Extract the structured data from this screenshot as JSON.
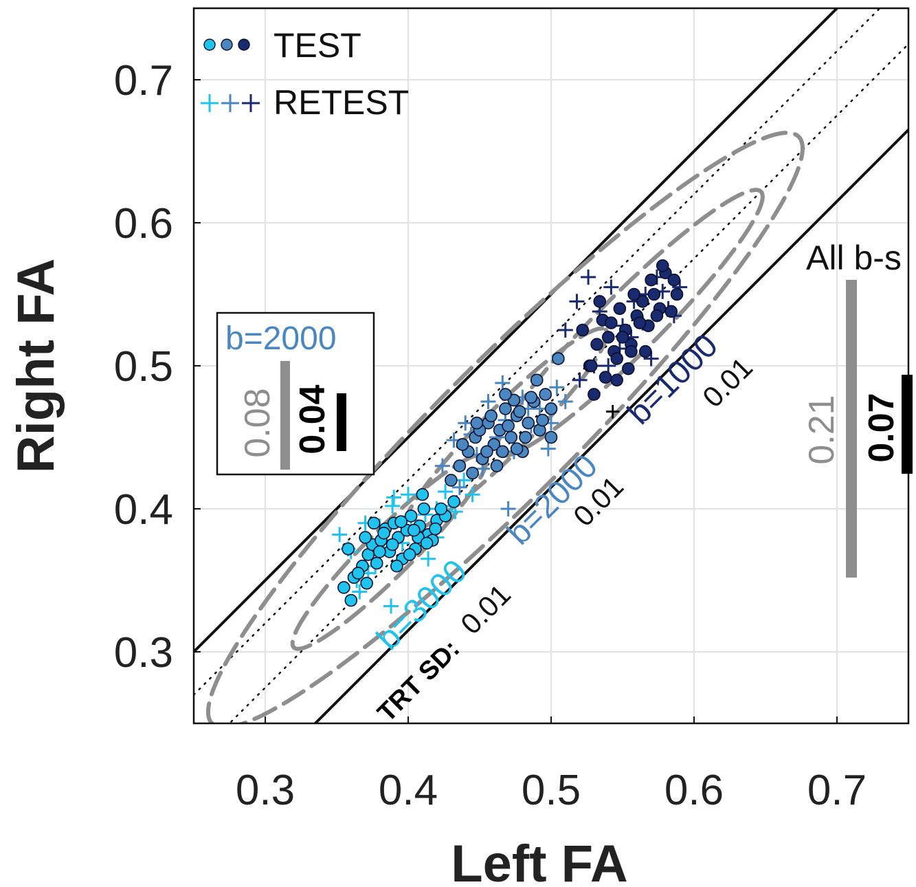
{
  "chart_data": {
    "type": "scatter",
    "xlabel": "Left FA",
    "ylabel": "Right FA",
    "xlim": [
      0.25,
      0.75
    ],
    "ylim": [
      0.25,
      0.75
    ],
    "xticks": [
      "0.3",
      "0.4",
      "0.5",
      "0.6",
      "0.7"
    ],
    "yticks": [
      "0.3",
      "0.4",
      "0.5",
      "0.6",
      "0.7"
    ],
    "grid": true,
    "legend": {
      "placement": "top-left",
      "entries": [
        {
          "label": "TEST",
          "marker": "circle"
        },
        {
          "label": "RETEST",
          "marker": "plus"
        }
      ]
    },
    "colors": {
      "b3000": "#1fc3ee",
      "b2000": "#4a86c0",
      "b1000": "#1a2a6e",
      "ellipse": "#8e8e8e",
      "lines": "#111111"
    },
    "series": [
      {
        "name": "b=3000",
        "color": "#1fc3ee",
        "test": {
          "x": [
            0.355,
            0.362,
            0.368,
            0.372,
            0.375,
            0.378,
            0.381,
            0.384,
            0.387,
            0.39,
            0.393,
            0.396,
            0.399,
            0.402,
            0.405,
            0.408,
            0.411,
            0.414,
            0.417,
            0.42,
            0.358,
            0.365,
            0.37,
            0.376,
            0.383,
            0.389,
            0.395,
            0.401,
            0.407,
            0.413,
            0.419,
            0.426,
            0.432,
            0.36,
            0.371,
            0.38,
            0.392,
            0.404,
            0.41,
            0.423
          ],
          "y": [
            0.345,
            0.352,
            0.36,
            0.368,
            0.375,
            0.362,
            0.378,
            0.386,
            0.37,
            0.39,
            0.38,
            0.365,
            0.385,
            0.395,
            0.372,
            0.388,
            0.4,
            0.382,
            0.378,
            0.392,
            0.372,
            0.355,
            0.38,
            0.39,
            0.383,
            0.375,
            0.391,
            0.368,
            0.38,
            0.376,
            0.386,
            0.395,
            0.405,
            0.336,
            0.348,
            0.37,
            0.36,
            0.385,
            0.41,
            0.4
          ]
        },
        "retest": {
          "x": [
            0.352,
            0.358,
            0.364,
            0.37,
            0.377,
            0.383,
            0.389,
            0.396,
            0.402,
            0.408,
            0.414,
            0.42,
            0.426,
            0.433,
            0.439,
            0.445,
            0.366,
            0.38,
            0.39,
            0.4,
            0.412,
            0.42,
            0.43,
            0.36,
            0.372,
            0.388
          ],
          "y": [
            0.382,
            0.372,
            0.35,
            0.39,
            0.36,
            0.378,
            0.402,
            0.376,
            0.392,
            0.385,
            0.365,
            0.4,
            0.412,
            0.398,
            0.42,
            0.41,
            0.342,
            0.388,
            0.408,
            0.41,
            0.396,
            0.38,
            0.402,
            0.37,
            0.355,
            0.332
          ]
        }
      },
      {
        "name": "b=2000",
        "color": "#4a86c0",
        "test": {
          "x": [
            0.43,
            0.436,
            0.442,
            0.447,
            0.452,
            0.456,
            0.46,
            0.464,
            0.468,
            0.472,
            0.476,
            0.48,
            0.484,
            0.488,
            0.492,
            0.496,
            0.5,
            0.445,
            0.455,
            0.462,
            0.47,
            0.478,
            0.486,
            0.494,
            0.438,
            0.45,
            0.466,
            0.474,
            0.482,
            0.49,
            0.458,
            0.468,
            0.448,
            0.5,
            0.505,
            0.476
          ],
          "y": [
            0.42,
            0.43,
            0.44,
            0.45,
            0.435,
            0.46,
            0.445,
            0.455,
            0.47,
            0.45,
            0.465,
            0.44,
            0.46,
            0.475,
            0.455,
            0.48,
            0.47,
            0.425,
            0.44,
            0.43,
            0.458,
            0.468,
            0.478,
            0.462,
            0.445,
            0.455,
            0.44,
            0.476,
            0.45,
            0.49,
            0.465,
            0.48,
            0.46,
            0.45,
            0.505,
            0.442
          ]
        },
        "retest": {
          "x": [
            0.424,
            0.432,
            0.44,
            0.448,
            0.456,
            0.462,
            0.468,
            0.474,
            0.48,
            0.486,
            0.492,
            0.498,
            0.504,
            0.51,
            0.436,
            0.452,
            0.466,
            0.484,
            0.5,
            0.444,
            0.47
          ],
          "y": [
            0.43,
            0.448,
            0.46,
            0.438,
            0.475,
            0.45,
            0.462,
            0.44,
            0.478,
            0.458,
            0.47,
            0.442,
            0.485,
            0.475,
            0.415,
            0.428,
            0.488,
            0.47,
            0.46,
            0.452,
            0.4
          ]
        }
      },
      {
        "name": "b=1000",
        "color": "#1a2a6e",
        "test": {
          "x": [
            0.522,
            0.527,
            0.532,
            0.536,
            0.54,
            0.544,
            0.548,
            0.552,
            0.556,
            0.56,
            0.564,
            0.568,
            0.572,
            0.576,
            0.58,
            0.584,
            0.588,
            0.53,
            0.538,
            0.546,
            0.554,
            0.562,
            0.57,
            0.578,
            0.534,
            0.542,
            0.55,
            0.558,
            0.566,
            0.574,
            0.586,
            0.528,
            0.546,
            0.556
          ],
          "y": [
            0.525,
            0.5,
            0.515,
            0.532,
            0.52,
            0.51,
            0.54,
            0.525,
            0.515,
            0.535,
            0.545,
            0.528,
            0.55,
            0.54,
            0.565,
            0.538,
            0.55,
            0.48,
            0.492,
            0.505,
            0.498,
            0.53,
            0.56,
            0.57,
            0.545,
            0.53,
            0.52,
            0.55,
            0.51,
            0.535,
            0.56,
            0.5,
            0.49,
            0.51
          ]
        },
        "retest": {
          "x": [
            0.51,
            0.518,
            0.526,
            0.534,
            0.542,
            0.55,
            0.558,
            0.566,
            0.574,
            0.582,
            0.59,
            0.52,
            0.54,
            0.556,
            0.57,
            0.586,
            0.53,
            0.548,
            0.564,
            0.578
          ],
          "y": [
            0.525,
            0.545,
            0.562,
            0.538,
            0.555,
            0.528,
            0.545,
            0.55,
            0.562,
            0.54,
            0.555,
            0.49,
            0.5,
            0.52,
            0.505,
            0.535,
            0.5,
            0.512,
            0.53,
            0.552
          ]
        }
      }
    ],
    "reference_lines": [
      {
        "style": "solid",
        "intercept": 0.05
      },
      {
        "style": "solid",
        "intercept": -0.085
      },
      {
        "style": "dotted",
        "intercept": 0.02
      },
      {
        "style": "dotted",
        "intercept": -0.025
      }
    ],
    "ellipses": [
      {
        "label": "b=3000",
        "center": [
          0.387,
          0.37
        ],
        "span": [
          0.062,
          0.058
        ]
      },
      {
        "label": "b=2000",
        "center": [
          0.468,
          0.455
        ],
        "span": [
          0.065,
          0.058
        ]
      },
      {
        "label": "b=1000",
        "center": [
          0.555,
          0.53
        ],
        "span": [
          0.085,
          0.075
        ]
      },
      {
        "label": "All b-s",
        "center": [
          0.468,
          0.455
        ],
        "span": [
          0.19,
          0.17
        ]
      }
    ],
    "annotations": {
      "trt_sd_label": "TRT SD:",
      "b3000_label": "b=3000",
      "b3000_sd": "0.01",
      "b2000_label": "b=2000",
      "b2000_sd": "0.01",
      "b1000_label": "b=1000",
      "b1000_sd": "0.01",
      "all_label": "All b-s",
      "all_gray_value": "0.21",
      "all_black_value": "0.07",
      "inset_label": "b=2000",
      "inset_gray_value": "0.08",
      "inset_black_value": "0.04",
      "plus_mark": "+"
    }
  }
}
